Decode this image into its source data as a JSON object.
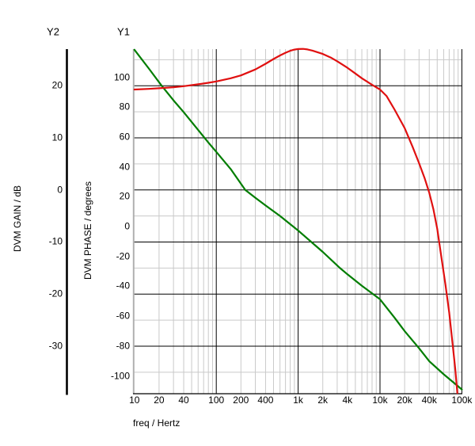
{
  "window": {
    "background": "#ffffff"
  },
  "colors": {
    "gain_curve": "#007d00",
    "phase_curve": "#e01010",
    "grid_minor": "#c9c9c9",
    "grid_major": "#000000",
    "y1_axis_line": "#b0b0b0",
    "y2_axis_line": "#000000",
    "x_axis_line": "#000000",
    "text": "#000000"
  },
  "chart_data": {
    "type": "line",
    "title": "",
    "legend": "none",
    "grid": {
      "vertical_major_at": [
        100,
        1000,
        10000,
        100000
      ],
      "vertical_minor": "log sub-decades 2-9",
      "horizontal_major_at_gain_db": [
        20,
        10,
        0,
        -10,
        -20,
        -30
      ],
      "horizontal_minor_at_gain_db": [
        25,
        15,
        5,
        -5,
        -15,
        -25,
        -35
      ]
    },
    "x_axis": {
      "label": "freq / Hertz",
      "scale": "log",
      "range": [
        10,
        100000
      ],
      "ticks": [
        {
          "f": 10,
          "label": "10"
        },
        {
          "f": 20,
          "label": "20"
        },
        {
          "f": 40,
          "label": "40"
        },
        {
          "f": 100,
          "label": "100"
        },
        {
          "f": 200,
          "label": "200"
        },
        {
          "f": 400,
          "label": "400"
        },
        {
          "f": 1000,
          "label": "1k"
        },
        {
          "f": 2000,
          "label": "2k"
        },
        {
          "f": 4000,
          "label": "4k"
        },
        {
          "f": 10000,
          "label": "10k"
        },
        {
          "f": 20000,
          "label": "20k"
        },
        {
          "f": 40000,
          "label": "40k"
        },
        {
          "f": 100000,
          "label": "100k"
        }
      ]
    },
    "y_axes": [
      {
        "id": "Y2",
        "label": "DVM GAIN / dB",
        "range": [
          -39.1,
          27.1
        ],
        "ticks": [
          {
            "v": 20,
            "label": "20"
          },
          {
            "v": 10,
            "label": "10"
          },
          {
            "v": 0,
            "label": "0"
          },
          {
            "v": -10,
            "label": "-10"
          },
          {
            "v": -20,
            "label": "-20"
          },
          {
            "v": -30,
            "label": "-30"
          }
        ]
      },
      {
        "id": "Y1",
        "label": "DVM PHASE / degrees",
        "range": [
          -111.9,
          118.8
        ],
        "ticks": [
          {
            "v": 100,
            "label": "100"
          },
          {
            "v": 80,
            "label": "80"
          },
          {
            "v": 60,
            "label": "60"
          },
          {
            "v": 40,
            "label": "40"
          },
          {
            "v": 20,
            "label": "20"
          },
          {
            "v": 0,
            "label": "0"
          },
          {
            "v": -20,
            "label": "-20"
          },
          {
            "v": -40,
            "label": "-40"
          },
          {
            "v": -60,
            "label": "-60"
          },
          {
            "v": -80,
            "label": "-80"
          },
          {
            "v": -100,
            "label": "-100"
          }
        ]
      }
    ],
    "series": [
      {
        "name": "DVM GAIN",
        "axis": "Y2",
        "color": "#007d00",
        "points": [
          [
            10,
            26.9
          ],
          [
            15,
            23.3
          ],
          [
            21.5,
            20.0
          ],
          [
            30,
            17.2
          ],
          [
            40,
            14.9
          ],
          [
            60,
            11.5
          ],
          [
            80,
            9.1
          ],
          [
            100,
            7.3
          ],
          [
            150,
            4.0
          ],
          [
            226,
            0.0
          ],
          [
            300,
            -1.5
          ],
          [
            400,
            -3.0
          ],
          [
            600,
            -5.0
          ],
          [
            1000,
            -7.8
          ],
          [
            1450,
            -10.0
          ],
          [
            2000,
            -11.9
          ],
          [
            3250,
            -15.0
          ],
          [
            4000,
            -16.2
          ],
          [
            6000,
            -18.4
          ],
          [
            10000,
            -21.0
          ],
          [
            15000,
            -24.5
          ],
          [
            20000,
            -27.1
          ],
          [
            30000,
            -30.4
          ],
          [
            40000,
            -32.9
          ],
          [
            60000,
            -35.4
          ],
          [
            100000,
            -38.3
          ]
        ]
      },
      {
        "name": "DVM PHASE",
        "axis": "Y1",
        "color": "#e01010",
        "points": [
          [
            10,
            91.8
          ],
          [
            15,
            92.2
          ],
          [
            20,
            92.6
          ],
          [
            30,
            93.3
          ],
          [
            40,
            94.0
          ],
          [
            60,
            95.3
          ],
          [
            80,
            96.3
          ],
          [
            100,
            97.2
          ],
          [
            150,
            99.3
          ],
          [
            200,
            101.2
          ],
          [
            300,
            105.2
          ],
          [
            400,
            109.0
          ],
          [
            500,
            112.2
          ],
          [
            600,
            114.6
          ],
          [
            700,
            116.4
          ],
          [
            800,
            117.7
          ],
          [
            900,
            118.5
          ],
          [
            1000,
            118.9
          ],
          [
            1150,
            119.0
          ],
          [
            1300,
            118.6
          ],
          [
            1500,
            117.8
          ],
          [
            2000,
            115.6
          ],
          [
            2500,
            113.2
          ],
          [
            3000,
            110.7
          ],
          [
            4000,
            106.3
          ],
          [
            5000,
            102.5
          ],
          [
            6000,
            99.3
          ],
          [
            8000,
            94.9
          ],
          [
            10000,
            91.8
          ],
          [
            12000,
            87.5
          ],
          [
            15000,
            78.5
          ],
          [
            20000,
            66.0
          ],
          [
            25000,
            53.5
          ],
          [
            30000,
            42.5
          ],
          [
            35000,
            32.5
          ],
          [
            40000,
            22.5
          ],
          [
            45000,
            11.5
          ],
          [
            50000,
            -1.5
          ],
          [
            56000,
            -20.0
          ],
          [
            63000,
            -39.0
          ],
          [
            70000,
            -57.5
          ],
          [
            78000,
            -81.0
          ],
          [
            83000,
            -95.0
          ],
          [
            88000,
            -111.5
          ]
        ]
      }
    ]
  }
}
